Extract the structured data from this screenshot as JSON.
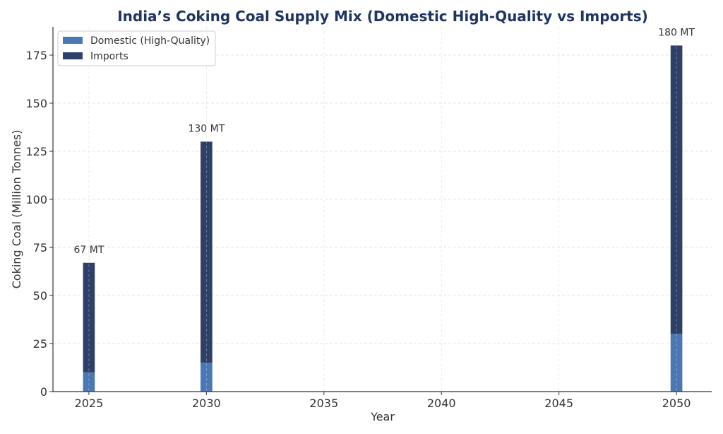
{
  "chart_data": {
    "type": "bar",
    "stacked": true,
    "title": "India’s Coking Coal Supply Mix (Domestic High-Quality vs Imports)",
    "xlabel": "Year",
    "ylabel": "Coking Coal (Million Tonnes)",
    "x": [
      2025,
      2030,
      2050
    ],
    "series": [
      {
        "name": "Domestic (High-Quality)",
        "values": [
          10,
          15,
          30
        ],
        "color": "#4a78b5"
      },
      {
        "name": "Imports",
        "values": [
          57,
          115,
          150
        ],
        "color": "#2f4068"
      }
    ],
    "data_labels": [
      "67 MT",
      "130 MT",
      "180 MT"
    ],
    "xlim": [
      2023.47,
      2051.5
    ],
    "ylim": [
      0,
      189.7
    ],
    "bar_width_years": 0.5,
    "xticks": [
      2025,
      2030,
      2035,
      2040,
      2045,
      2050
    ],
    "yticks": [
      0,
      25,
      50,
      75,
      100,
      125,
      150,
      175
    ],
    "grid": true,
    "legend_position": "top-left",
    "title_color": "#1f3461"
  }
}
